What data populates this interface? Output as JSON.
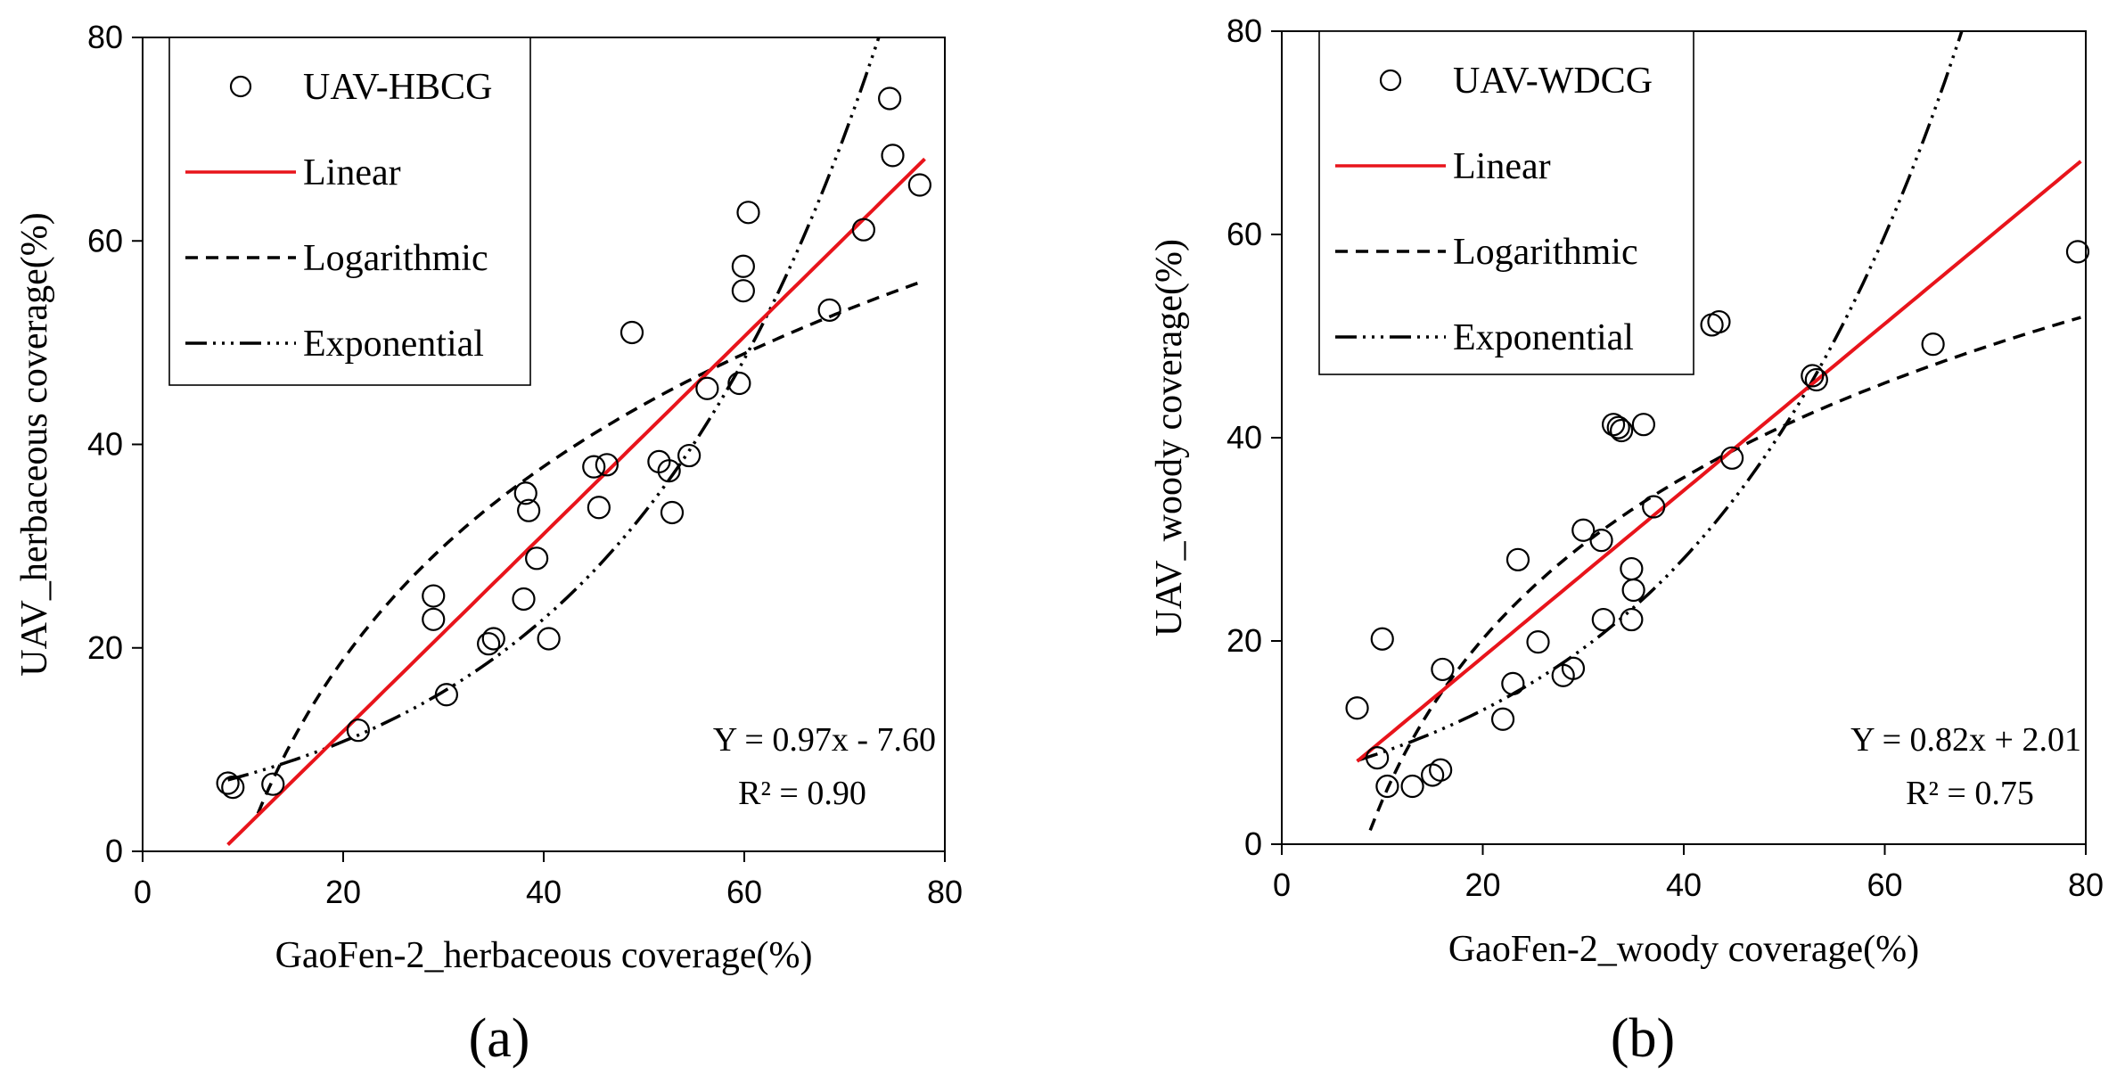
{
  "chart_data": [
    {
      "type": "scatter",
      "panel_label": "(a)",
      "xlabel": "GaoFen-2_herbaceous coverage(%)",
      "ylabel": "UAV_herbaceous coverage(%)",
      "xlim": [
        0,
        80
      ],
      "ylim": [
        0,
        80
      ],
      "xticks": [
        "0",
        "20",
        "40",
        "60",
        "80"
      ],
      "yticks": [
        "0",
        "20",
        "40",
        "60",
        "80"
      ],
      "legend": [
        "UAV-HBCG",
        "Linear",
        "Logarithmic",
        "Exponential"
      ],
      "legend_position": "top-left",
      "equation": "Y = 0.97x - 7.60",
      "r2": "R² = 0.90",
      "colors": {
        "linear": "#e8141b",
        "points": "#000000"
      },
      "points": [
        [
          8.5,
          6.7
        ],
        [
          9,
          6.3
        ],
        [
          13,
          6.6
        ],
        [
          21.5,
          11.9
        ],
        [
          29,
          25.1
        ],
        [
          29,
          22.8
        ],
        [
          30.3,
          15.4
        ],
        [
          34.5,
          20.4
        ],
        [
          35,
          20.9
        ],
        [
          38,
          24.8
        ],
        [
          38.2,
          35.2
        ],
        [
          38.5,
          33.5
        ],
        [
          39.3,
          28.8
        ],
        [
          40.5,
          20.9
        ],
        [
          45,
          37.8
        ],
        [
          45.5,
          33.8
        ],
        [
          46.3,
          38
        ],
        [
          48.8,
          51
        ],
        [
          51.5,
          38.3
        ],
        [
          52.5,
          37.4
        ],
        [
          52.8,
          33.3
        ],
        [
          54.5,
          38.9
        ],
        [
          56.3,
          45.5
        ],
        [
          59.5,
          46
        ],
        [
          59.9,
          57.5
        ],
        [
          59.9,
          55.1
        ],
        [
          60.4,
          62.8
        ],
        [
          68.5,
          53.2
        ],
        [
          71.9,
          61.1
        ],
        [
          74.5,
          74
        ],
        [
          74.8,
          68.4
        ],
        [
          77.5,
          65.5
        ]
      ],
      "fits": {
        "linear": {
          "a": 0.97,
          "b": -7.6,
          "x_range": [
            8.5,
            78
          ]
        },
        "logarithmic": {
          "a": 27.36,
          "b": -63.1,
          "x_range": [
            11.5,
            78
          ]
        },
        "exponential": {
          "a": 5.1,
          "b": 0.0375,
          "x_range": [
            8.5,
            76
          ]
        }
      }
    },
    {
      "type": "scatter",
      "panel_label": "(b)",
      "xlabel": "GaoFen-2_woody coverage(%)",
      "ylabel": "UAV_woody coverage(%)",
      "xlim": [
        0,
        80
      ],
      "ylim": [
        0,
        80
      ],
      "xticks": [
        "0",
        "20",
        "40",
        "60",
        "80"
      ],
      "yticks": [
        "0",
        "20",
        "40",
        "60",
        "80"
      ],
      "legend": [
        "UAV-WDCG",
        "Linear",
        "Logarithmic",
        "Exponential"
      ],
      "legend_position": "top-left",
      "equation": "Y = 0.82x + 2.01",
      "r2": "R² = 0.75",
      "colors": {
        "linear": "#e8141b",
        "points": "#000000"
      },
      "points": [
        [
          7.5,
          13.4
        ],
        [
          9.5,
          8.5
        ],
        [
          10,
          20.2
        ],
        [
          10.5,
          5.7
        ],
        [
          13,
          5.7
        ],
        [
          15,
          6.8
        ],
        [
          15.8,
          7.3
        ],
        [
          16,
          17.2
        ],
        [
          22,
          12.3
        ],
        [
          23,
          15.8
        ],
        [
          23.5,
          28
        ],
        [
          25.5,
          19.9
        ],
        [
          28,
          16.6
        ],
        [
          29,
          17.3
        ],
        [
          30,
          30.9
        ],
        [
          31.8,
          29.9
        ],
        [
          32,
          22.1
        ],
        [
          33,
          41.3
        ],
        [
          33.5,
          41
        ],
        [
          33.8,
          40.7
        ],
        [
          34.8,
          22.1
        ],
        [
          34.8,
          27.1
        ],
        [
          35,
          25
        ],
        [
          36,
          41.3
        ],
        [
          37,
          33.2
        ],
        [
          42.8,
          51.1
        ],
        [
          43.5,
          51.4
        ],
        [
          44.8,
          38
        ],
        [
          52.8,
          46.1
        ],
        [
          53.2,
          45.7
        ],
        [
          64.8,
          49.2
        ],
        [
          79.2,
          58.3
        ]
      ],
      "fits": {
        "linear": {
          "a": 0.82,
          "b": 2.01,
          "x_range": [
            7.5,
            79.5
          ]
        },
        "logarithmic": {
          "a": 22.93,
          "b": -48.5,
          "x_range": [
            8.8,
            79.5
          ]
        },
        "exponential": {
          "a": 6.2,
          "b": 0.0378,
          "x_range": [
            7.5,
            68.5
          ]
        }
      }
    }
  ]
}
